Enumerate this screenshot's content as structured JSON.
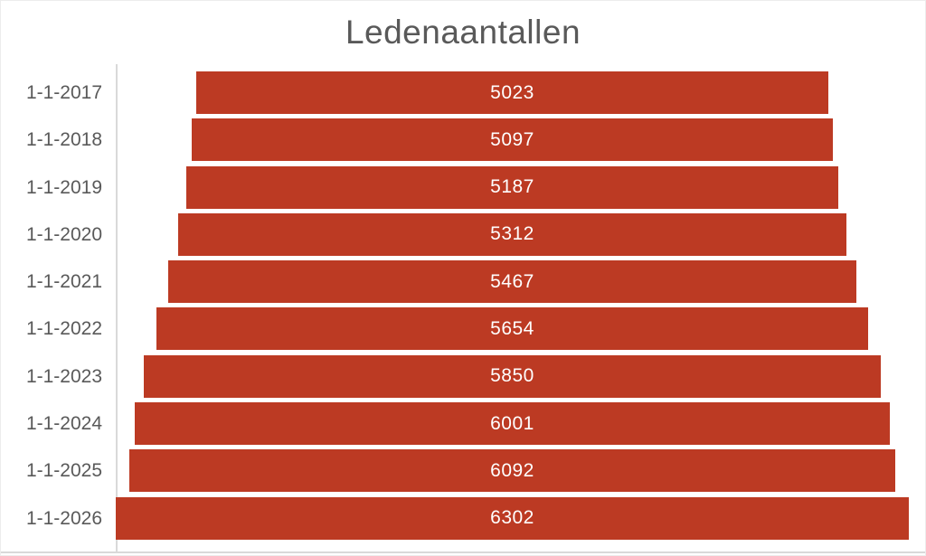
{
  "title": "Ledenaantallen",
  "colors": {
    "bar": "#bc3a23",
    "title_text": "#595959",
    "axis_label_text": "#595959",
    "value_label_text": "#ffffff",
    "axis_line": "#d9d9d9",
    "border": "#ececec"
  },
  "chart_data": {
    "type": "bar",
    "subtype": "funnel-centered-horizontal-bars",
    "title": "Ledenaantallen",
    "categories": [
      "1-1-2017",
      "1-1-2018",
      "1-1-2019",
      "1-1-2020",
      "1-1-2021",
      "1-1-2022",
      "1-1-2023",
      "1-1-2024",
      "1-1-2025",
      "1-1-2026"
    ],
    "values": [
      5023,
      5097,
      5187,
      5312,
      5467,
      5654,
      5850,
      6001,
      6092,
      6302
    ],
    "xlabel": "",
    "ylabel": "",
    "value_labels": "inside-bars-centered",
    "bars_centered": true,
    "max_value_fills_plot_width": true,
    "axis_range_max": 6302,
    "legend": "none",
    "grid": "off"
  }
}
